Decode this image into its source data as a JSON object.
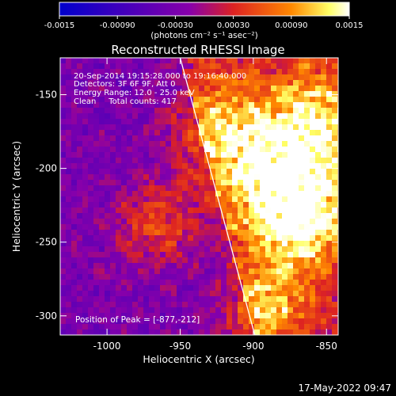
{
  "chart_data": {
    "type": "heatmap",
    "title": "Reconstructed RHESSI Image",
    "xlabel": "Heliocentric X (arcsec)",
    "ylabel": "Heliocentric Y (arcsec)",
    "xlim": [
      -1032,
      -842
    ],
    "ylim": [
      -313,
      -125
    ],
    "x_ticks": [
      "-1000",
      "-950",
      "-900",
      "-850"
    ],
    "x_tick_values": [
      -1000,
      -950,
      -900,
      -850
    ],
    "y_ticks": [
      "-150",
      "-200",
      "-250",
      "-300"
    ],
    "y_tick_values": [
      -150,
      -200,
      -250,
      -300
    ],
    "colorbar": {
      "range": [
        -0.0015,
        0.0015
      ],
      "tick_labels": [
        "-0.0015",
        "-0.00090",
        "-0.00030",
        "0.00030",
        "0.00090",
        "0.0015"
      ],
      "tick_values": [
        -0.0015,
        -0.0009,
        -0.0003,
        0.0003,
        0.0009,
        0.0015
      ],
      "units": "(photons cm⁻² s⁻¹ asec⁻²)",
      "colors": [
        "#0000cc",
        "#8800aa",
        "#dd2222",
        "#ff8800",
        "#ffff66",
        "#ffffff"
      ]
    },
    "annotations": {
      "time": "20-Sep-2014 19:15:28.000 to 19:16:40.000",
      "detectors": "Detectors: 3F 6F 9F, Att 0",
      "energy": "Energy Range: 12.0 - 25.0 keV",
      "method": "Clean     Total counts: 417",
      "peak": "Position of Peak = [-877,-212]"
    },
    "peak": [
      -877,
      -212
    ],
    "limb_line": [
      [
        -950,
        -125
      ],
      [
        -899,
        -313
      ]
    ]
  },
  "footer_date": "17-May-2022 09:47"
}
